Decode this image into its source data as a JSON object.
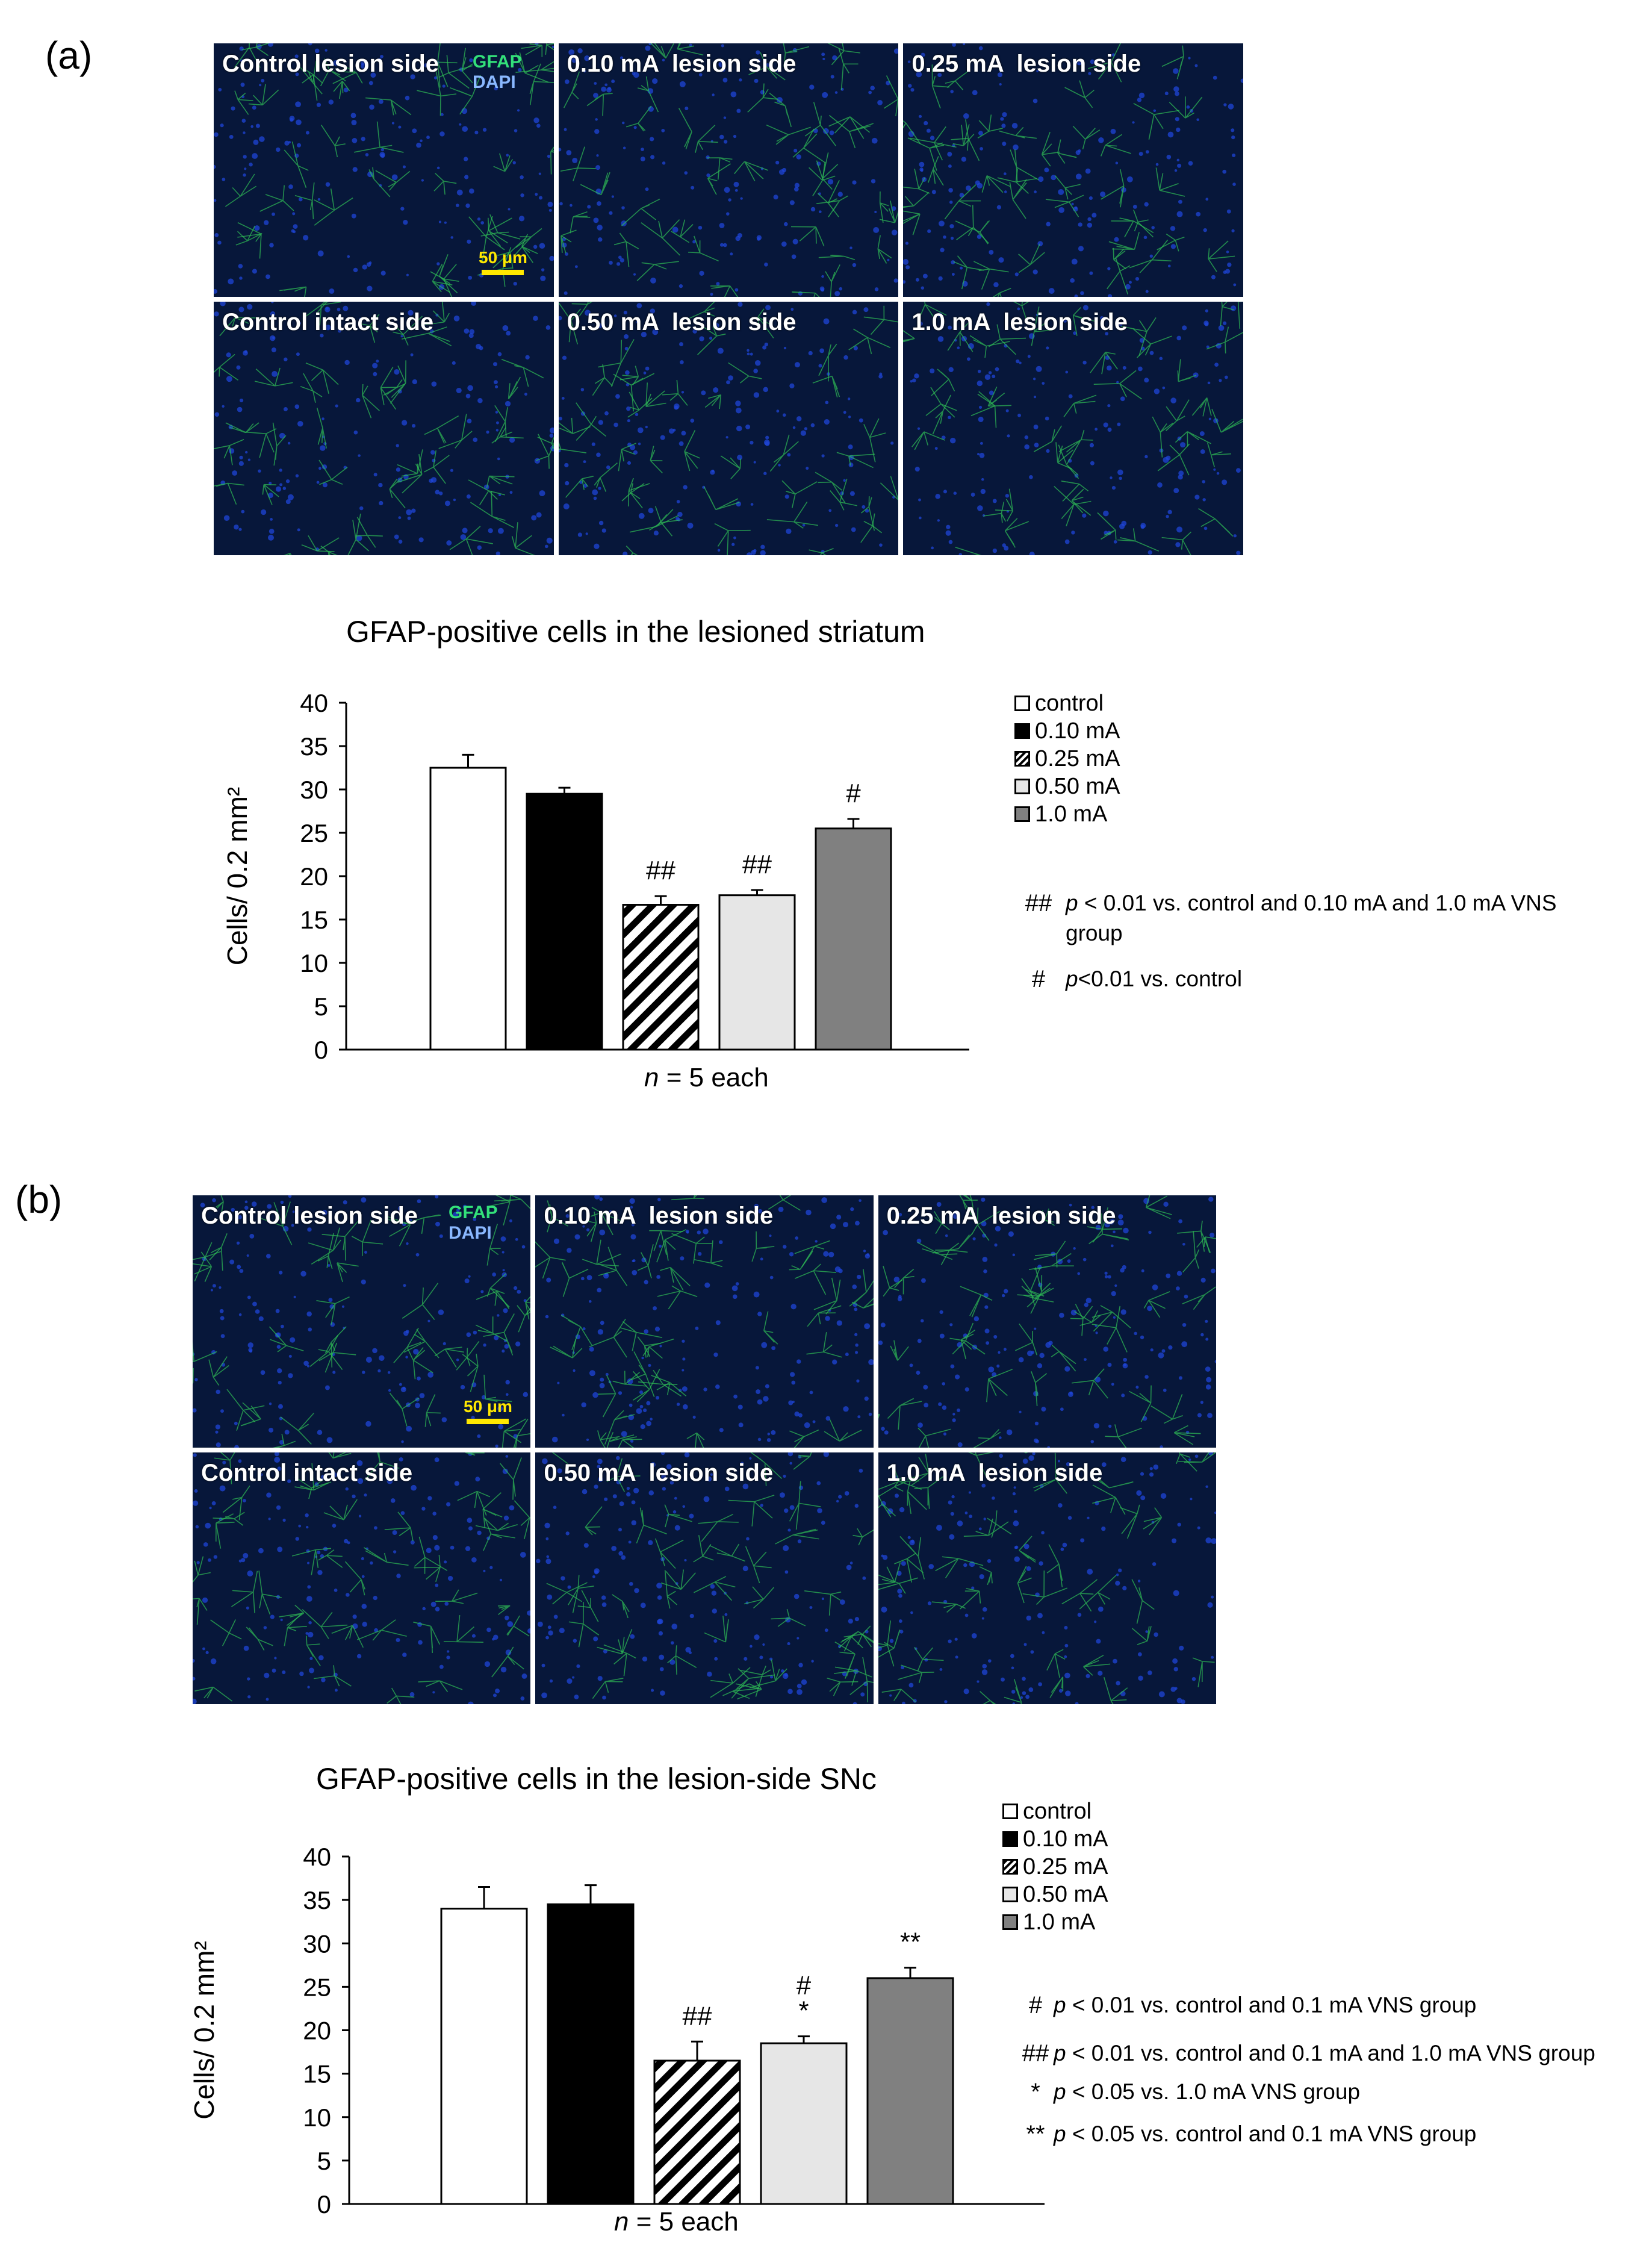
{
  "panels": [
    {
      "letter": "(a)",
      "stain_labels": [
        "GFAP",
        "DAPI"
      ],
      "scale_bar": "50 μm",
      "tiles": [
        {
          "label": "Control lesion side"
        },
        {
          "label": "0.10 mA  lesion side"
        },
        {
          "label": "0.25 mA  lesion side"
        },
        {
          "label": "Control intact side"
        },
        {
          "label": "0.50 mA  lesion side"
        },
        {
          "label": "1.0 mA  lesion side"
        }
      ],
      "significance_notes": [
        {
          "symbol": "##",
          "p_label": "p",
          "text": " < 0.01 vs. control and 0.10 mA and 1.0 mA VNS group"
        },
        {
          "symbol": "#",
          "p_label": "p",
          "text": "<0.01 vs. control"
        }
      ],
      "n_label": {
        "italic": "n",
        "rest": " = 5 each"
      }
    },
    {
      "letter": "(b)",
      "stain_labels": [
        "GFAP",
        "DAPI"
      ],
      "scale_bar": "50 μm",
      "tiles": [
        {
          "label": "Control lesion side"
        },
        {
          "label": "0.10 mA  lesion side"
        },
        {
          "label": "0.25 mA  lesion side"
        },
        {
          "label": "Control intact side"
        },
        {
          "label": "0.50 mA  lesion side"
        },
        {
          "label": "1.0 mA  lesion side"
        }
      ],
      "significance_notes": [
        {
          "symbol": "#",
          "p_label": "p",
          "text": " < 0.01 vs. control and 0.1 mA VNS group"
        },
        {
          "symbol": "##",
          "p_label": "p",
          "text": " < 0.01 vs. control and 0.1 mA and 1.0 mA VNS group"
        },
        {
          "symbol": "*",
          "p_label": "p",
          "text": " < 0.05 vs. 1.0 mA VNS group"
        },
        {
          "symbol": "**",
          "p_label": "p",
          "text": " < 0.05 vs. control and 0.1 mA VNS group"
        }
      ],
      "n_label": {
        "italic": "n",
        "rest": " = 5 each"
      }
    }
  ],
  "chart_data": [
    {
      "type": "bar",
      "title": "GFAP-positive cells in the lesioned striatum",
      "ylabel": "Cells/ 0.2 mm²",
      "xlabel": "n = 5 each",
      "ylim": [
        0,
        40
      ],
      "yticks": [
        0,
        5,
        10,
        15,
        20,
        25,
        30,
        35,
        40
      ],
      "categories": [
        "control",
        "0.10 mA",
        "0.25 mA",
        "0.50 mA",
        "1.0 mA"
      ],
      "values": [
        32.5,
        29.5,
        16.7,
        17.8,
        25.5
      ],
      "errors": [
        1.5,
        0.7,
        1.0,
        0.6,
        1.1
      ],
      "annotations": [
        "",
        "",
        "##",
        "##",
        "#"
      ],
      "colors": [
        "#ffffff",
        "#000000",
        "hatch",
        "#e6e6e6",
        "#808080"
      ],
      "legend": [
        "control",
        "0.10 mA",
        "0.25 mA",
        "0.50 mA",
        "1.0 mA"
      ],
      "legend_position": "right"
    },
    {
      "type": "bar",
      "title": "GFAP-positive cells in the lesion-side SNc",
      "ylabel": "Cells/ 0.2 mm²",
      "xlabel": "n = 5 each",
      "ylim": [
        0,
        40
      ],
      "yticks": [
        0,
        5,
        10,
        15,
        20,
        25,
        30,
        35,
        40
      ],
      "categories": [
        "control",
        "0.10 mA",
        "0.25 mA",
        "0.50 mA",
        "1.0 mA"
      ],
      "values": [
        34.0,
        34.5,
        16.5,
        18.5,
        26.0
      ],
      "errors": [
        2.5,
        2.2,
        2.2,
        0.8,
        1.2
      ],
      "annotations": [
        "",
        "",
        "##",
        "#\n*",
        "**"
      ],
      "colors": [
        "#ffffff",
        "#000000",
        "hatch",
        "#e6e6e6",
        "#808080"
      ],
      "legend": [
        "control",
        "0.10 mA",
        "0.25 mA",
        "0.50 mA",
        "1.0 mA"
      ],
      "legend_position": "top-right"
    }
  ]
}
